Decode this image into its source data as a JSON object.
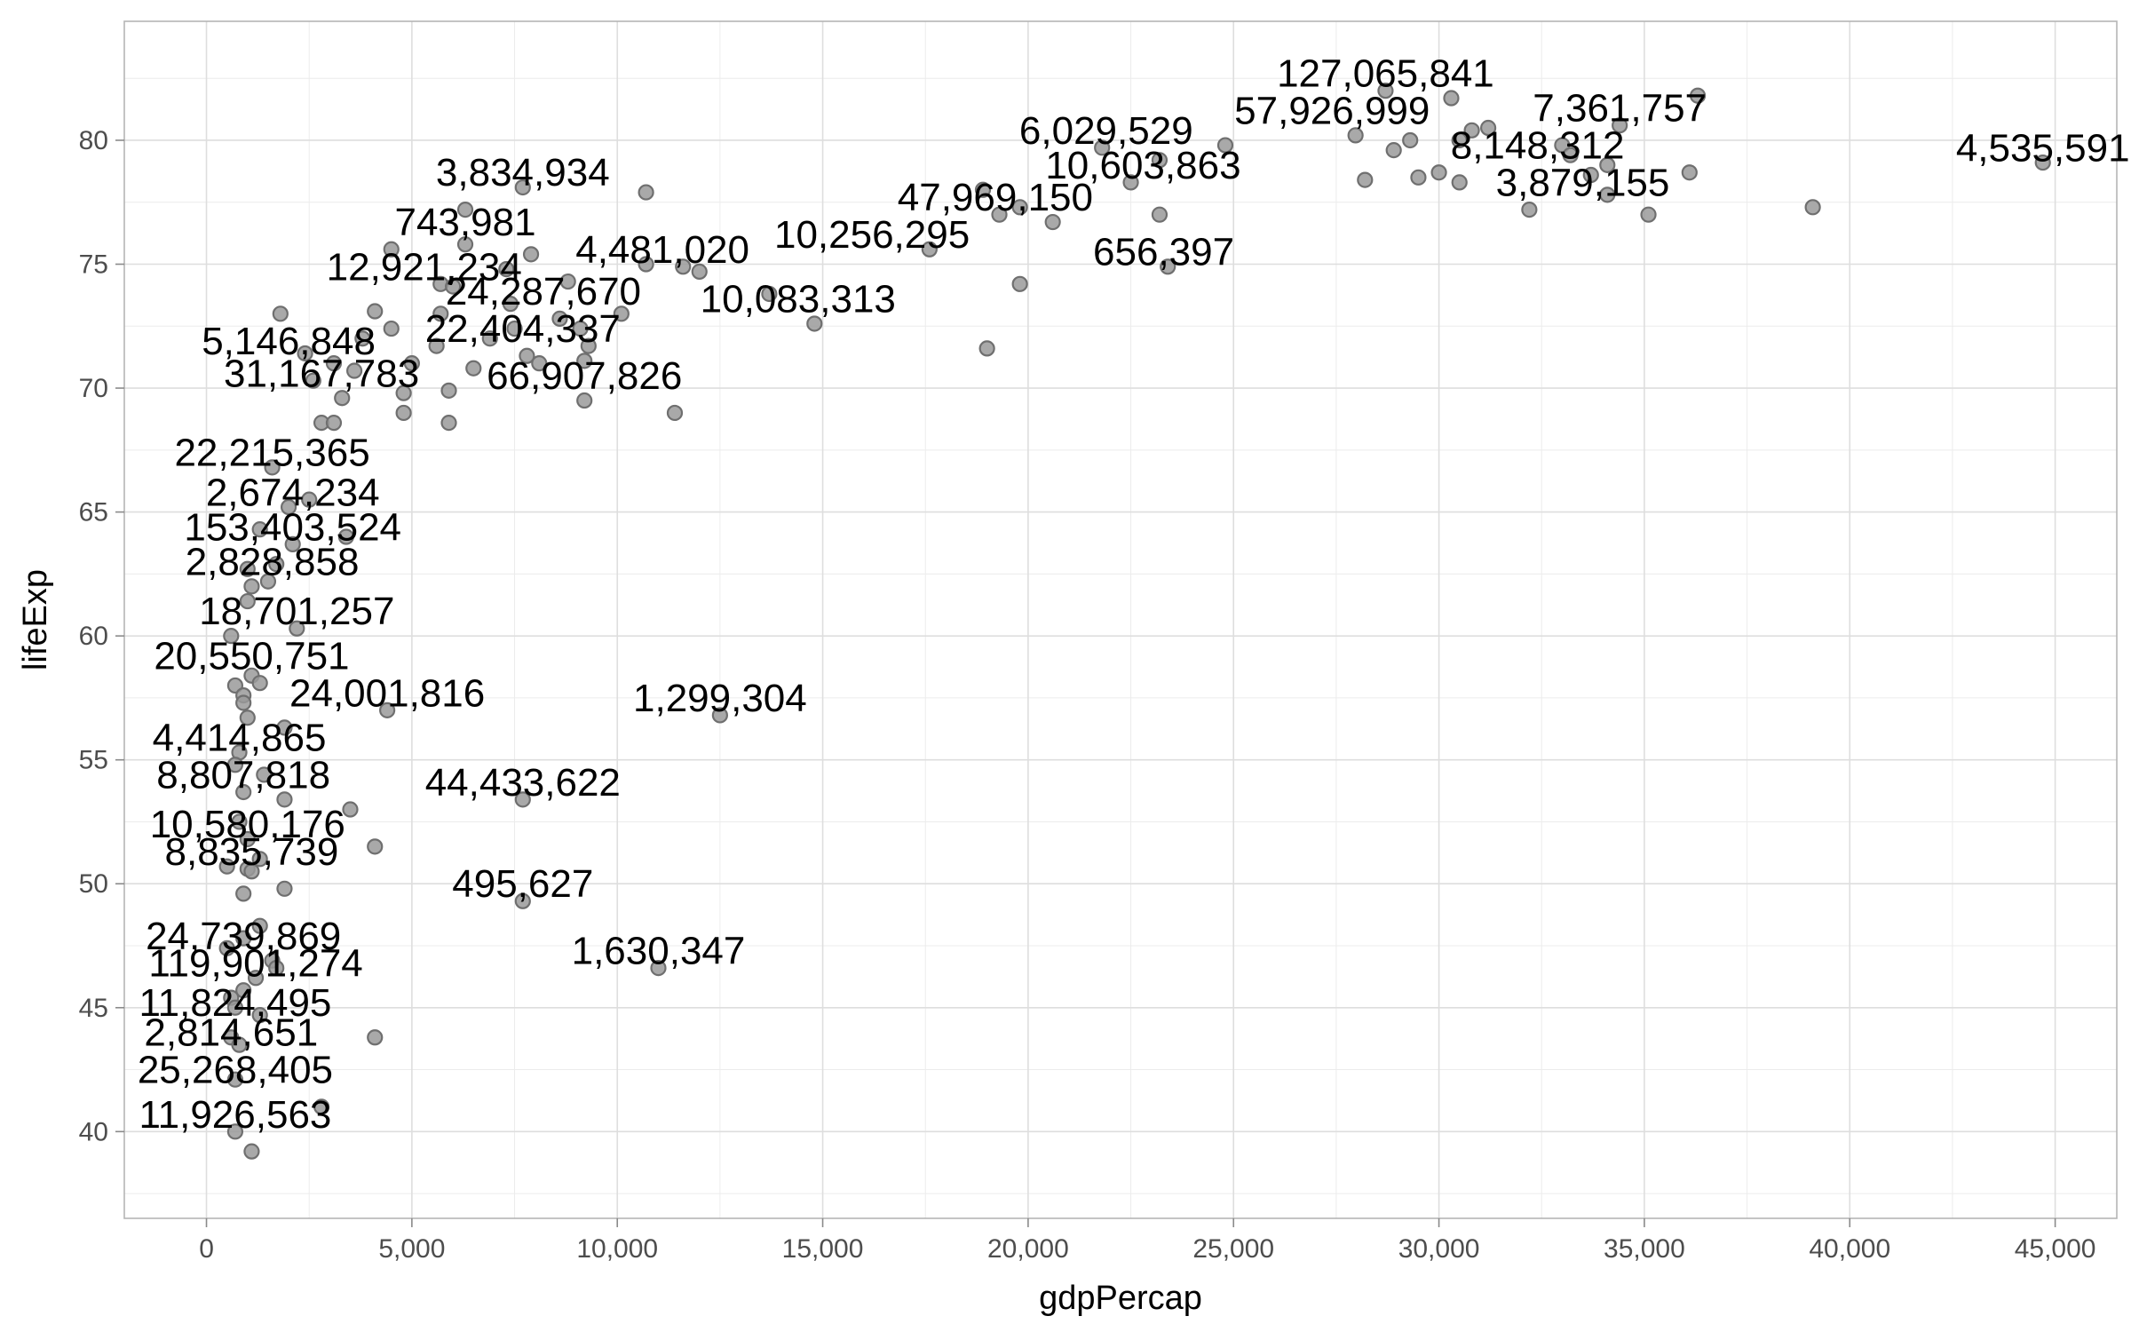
{
  "chart_data": {
    "type": "scatter",
    "title": "",
    "xlabel": "gdpPercap",
    "ylabel": "lifeExp",
    "xlim": [
      -2000,
      46500
    ],
    "ylim": [
      36.5,
      84.8
    ],
    "xticks": [
      0,
      5000,
      10000,
      15000,
      20000,
      25000,
      30000,
      35000,
      40000,
      45000
    ],
    "xtick_labels": [
      "0",
      "5,000",
      "10,000",
      "15,000",
      "20,000",
      "25,000",
      "30,000",
      "35,000",
      "40,000",
      "45,000"
    ],
    "yticks": [
      40,
      45,
      50,
      55,
      60,
      65,
      70,
      75,
      80
    ],
    "ytick_labels": [
      "40",
      "45",
      "50",
      "55",
      "60",
      "65",
      "70",
      "75",
      "80"
    ],
    "grid": true,
    "legend": "none",
    "point_color": "#9a9a9a",
    "points": [
      {
        "x": 28700,
        "y": 82.0
      },
      {
        "x": 30300,
        "y": 81.7
      },
      {
        "x": 36300,
        "y": 81.8
      },
      {
        "x": 34400,
        "y": 80.6
      },
      {
        "x": 27970,
        "y": 80.2
      },
      {
        "x": 30500,
        "y": 80.0
      },
      {
        "x": 29300,
        "y": 80.0
      },
      {
        "x": 30800,
        "y": 80.4
      },
      {
        "x": 31200,
        "y": 80.5
      },
      {
        "x": 33000,
        "y": 79.8
      },
      {
        "x": 24800,
        "y": 79.8
      },
      {
        "x": 23200,
        "y": 79.2
      },
      {
        "x": 21800,
        "y": 79.7
      },
      {
        "x": 28900,
        "y": 79.6
      },
      {
        "x": 33200,
        "y": 79.4
      },
      {
        "x": 34100,
        "y": 79.0
      },
      {
        "x": 33700,
        "y": 78.6
      },
      {
        "x": 30000,
        "y": 78.7
      },
      {
        "x": 29500,
        "y": 78.5
      },
      {
        "x": 30500,
        "y": 78.3
      },
      {
        "x": 28200,
        "y": 78.4
      },
      {
        "x": 36100,
        "y": 78.7
      },
      {
        "x": 44700,
        "y": 79.1
      },
      {
        "x": 22500,
        "y": 78.3
      },
      {
        "x": 10700,
        "y": 77.9
      },
      {
        "x": 7700,
        "y": 78.1
      },
      {
        "x": 18900,
        "y": 78.0
      },
      {
        "x": 19800,
        "y": 77.3
      },
      {
        "x": 20600,
        "y": 76.7
      },
      {
        "x": 23200,
        "y": 77.0
      },
      {
        "x": 32200,
        "y": 77.2
      },
      {
        "x": 34100,
        "y": 77.8
      },
      {
        "x": 35100,
        "y": 77.0
      },
      {
        "x": 39100,
        "y": 77.3
      },
      {
        "x": 6300,
        "y": 77.2
      },
      {
        "x": 19300,
        "y": 77.0
      },
      {
        "x": 17600,
        "y": 75.6
      },
      {
        "x": 23400,
        "y": 74.9
      },
      {
        "x": 19800,
        "y": 74.2
      },
      {
        "x": 10700,
        "y": 75.0
      },
      {
        "x": 11600,
        "y": 74.9
      },
      {
        "x": 12000,
        "y": 74.7
      },
      {
        "x": 6300,
        "y": 75.8
      },
      {
        "x": 4500,
        "y": 75.6
      },
      {
        "x": 7300,
        "y": 74.8
      },
      {
        "x": 7900,
        "y": 75.4
      },
      {
        "x": 8800,
        "y": 74.3
      },
      {
        "x": 5700,
        "y": 74.2
      },
      {
        "x": 6000,
        "y": 74.1
      },
      {
        "x": 7400,
        "y": 73.4
      },
      {
        "x": 4100,
        "y": 73.1
      },
      {
        "x": 5700,
        "y": 73.0
      },
      {
        "x": 8600,
        "y": 72.8
      },
      {
        "x": 10100,
        "y": 73.0
      },
      {
        "x": 9100,
        "y": 72.4
      },
      {
        "x": 13700,
        "y": 73.8
      },
      {
        "x": 14800,
        "y": 72.6
      },
      {
        "x": 1800,
        "y": 73.0
      },
      {
        "x": 4500,
        "y": 72.4
      },
      {
        "x": 3800,
        "y": 72.0
      },
      {
        "x": 5600,
        "y": 71.7
      },
      {
        "x": 6900,
        "y": 72.0
      },
      {
        "x": 7500,
        "y": 72.4
      },
      {
        "x": 9300,
        "y": 71.7
      },
      {
        "x": 19000,
        "y": 71.6
      },
      {
        "x": 2400,
        "y": 71.4
      },
      {
        "x": 3100,
        "y": 71.0
      },
      {
        "x": 3600,
        "y": 70.7
      },
      {
        "x": 5000,
        "y": 71.0
      },
      {
        "x": 6500,
        "y": 70.8
      },
      {
        "x": 7800,
        "y": 71.3
      },
      {
        "x": 8100,
        "y": 71.0
      },
      {
        "x": 9200,
        "y": 71.1
      },
      {
        "x": 2600,
        "y": 70.3
      },
      {
        "x": 4800,
        "y": 69.8
      },
      {
        "x": 5900,
        "y": 69.9
      },
      {
        "x": 3300,
        "y": 69.6
      },
      {
        "x": 9200,
        "y": 69.5
      },
      {
        "x": 11400,
        "y": 69.0
      },
      {
        "x": 4800,
        "y": 69.0
      },
      {
        "x": 2800,
        "y": 68.6
      },
      {
        "x": 3100,
        "y": 68.6
      },
      {
        "x": 5900,
        "y": 68.6
      },
      {
        "x": 1600,
        "y": 66.8
      },
      {
        "x": 2500,
        "y": 65.5
      },
      {
        "x": 2000,
        "y": 65.2
      },
      {
        "x": 1300,
        "y": 64.3
      },
      {
        "x": 3400,
        "y": 64.0
      },
      {
        "x": 2100,
        "y": 63.7
      },
      {
        "x": 1700,
        "y": 62.9
      },
      {
        "x": 1000,
        "y": 62.7
      },
      {
        "x": 1500,
        "y": 62.2
      },
      {
        "x": 1100,
        "y": 62.0
      },
      {
        "x": 1000,
        "y": 61.4
      },
      {
        "x": 2200,
        "y": 60.3
      },
      {
        "x": 600,
        "y": 60.0
      },
      {
        "x": 700,
        "y": 58.0
      },
      {
        "x": 1100,
        "y": 58.4
      },
      {
        "x": 1300,
        "y": 58.1
      },
      {
        "x": 900,
        "y": 57.6
      },
      {
        "x": 900,
        "y": 57.3
      },
      {
        "x": 4400,
        "y": 57.0
      },
      {
        "x": 12500,
        "y": 56.8
      },
      {
        "x": 1000,
        "y": 56.7
      },
      {
        "x": 1900,
        "y": 56.3
      },
      {
        "x": 800,
        "y": 55.3
      },
      {
        "x": 700,
        "y": 54.8
      },
      {
        "x": 1400,
        "y": 54.4
      },
      {
        "x": 900,
        "y": 53.7
      },
      {
        "x": 1900,
        "y": 53.4
      },
      {
        "x": 7700,
        "y": 53.4
      },
      {
        "x": 3500,
        "y": 53.0
      },
      {
        "x": 800,
        "y": 52.5
      },
      {
        "x": 1000,
        "y": 51.8
      },
      {
        "x": 4100,
        "y": 51.5
      },
      {
        "x": 1300,
        "y": 51.0
      },
      {
        "x": 500,
        "y": 50.7
      },
      {
        "x": 1000,
        "y": 50.6
      },
      {
        "x": 1100,
        "y": 50.5
      },
      {
        "x": 1900,
        "y": 49.8
      },
      {
        "x": 900,
        "y": 49.6
      },
      {
        "x": 7700,
        "y": 49.3
      },
      {
        "x": 1300,
        "y": 48.3
      },
      {
        "x": 900,
        "y": 47.8
      },
      {
        "x": 500,
        "y": 47.4
      },
      {
        "x": 1600,
        "y": 46.9
      },
      {
        "x": 1700,
        "y": 46.6
      },
      {
        "x": 11000,
        "y": 46.6
      },
      {
        "x": 1200,
        "y": 46.2
      },
      {
        "x": 900,
        "y": 45.7
      },
      {
        "x": 600,
        "y": 45.4
      },
      {
        "x": 700,
        "y": 45.0
      },
      {
        "x": 1300,
        "y": 44.7
      },
      {
        "x": 4100,
        "y": 43.8
      },
      {
        "x": 600,
        "y": 43.8
      },
      {
        "x": 800,
        "y": 43.5
      },
      {
        "x": 700,
        "y": 42.1
      },
      {
        "x": 2800,
        "y": 41.0
      },
      {
        "x": 700,
        "y": 40.0
      },
      {
        "x": 1100,
        "y": 39.2
      }
    ],
    "annotations": [
      {
        "text": "127,065,841",
        "x": 28700,
        "y": 82.7
      },
      {
        "text": "57,926,999",
        "x": 27400,
        "y": 81.2
      },
      {
        "text": "7,361,757",
        "x": 34400,
        "y": 81.3
      },
      {
        "text": "4,535,591",
        "x": 44700,
        "y": 79.7
      },
      {
        "text": "6,029,529",
        "x": 21900,
        "y": 80.4
      },
      {
        "text": "10,603,863",
        "x": 22800,
        "y": 79.0
      },
      {
        "text": "8,148,312",
        "x": 32400,
        "y": 79.8
      },
      {
        "text": "3,879,155",
        "x": 33500,
        "y": 78.3
      },
      {
        "text": "3,834,934",
        "x": 7700,
        "y": 78.7
      },
      {
        "text": "47,969,150",
        "x": 19200,
        "y": 77.7
      },
      {
        "text": "10,256,295",
        "x": 16200,
        "y": 76.2
      },
      {
        "text": "656,397",
        "x": 23300,
        "y": 75.5
      },
      {
        "text": "743,981",
        "x": 6300,
        "y": 76.7
      },
      {
        "text": "4,481,020",
        "x": 11100,
        "y": 75.6
      },
      {
        "text": "12,921,234",
        "x": 5300,
        "y": 74.9
      },
      {
        "text": "10,083,313",
        "x": 14400,
        "y": 73.6
      },
      {
        "text": "24,287,670",
        "x": 8200,
        "y": 73.9
      },
      {
        "text": "22,404,337",
        "x": 7700,
        "y": 72.4
      },
      {
        "text": "5,146,848",
        "x": 2000,
        "y": 71.9
      },
      {
        "text": "31,167,783",
        "x": 2800,
        "y": 70.6
      },
      {
        "text": "66,907,826",
        "x": 9200,
        "y": 70.5
      },
      {
        "text": "22,215,365",
        "x": 1600,
        "y": 67.4
      },
      {
        "text": "2,674,234",
        "x": 2100,
        "y": 65.8
      },
      {
        "text": "153,403,524",
        "x": 2100,
        "y": 64.4
      },
      {
        "text": "2,828,858",
        "x": 1600,
        "y": 63.0
      },
      {
        "text": "18,701,257",
        "x": 2200,
        "y": 61.0
      },
      {
        "text": "20,550,751",
        "x": 1100,
        "y": 59.2
      },
      {
        "text": "24,001,816",
        "x": 4400,
        "y": 57.7
      },
      {
        "text": "1,299,304",
        "x": 12500,
        "y": 57.5
      },
      {
        "text": "4,414,865",
        "x": 800,
        "y": 55.9
      },
      {
        "text": "8,807,818",
        "x": 900,
        "y": 54.4
      },
      {
        "text": "44,433,622",
        "x": 7700,
        "y": 54.1
      },
      {
        "text": "10,580,176",
        "x": 1000,
        "y": 52.4
      },
      {
        "text": "8,835,739",
        "x": 1100,
        "y": 51.3
      },
      {
        "text": "495,627",
        "x": 7700,
        "y": 50.0
      },
      {
        "text": "24,739,869",
        "x": 900,
        "y": 47.9
      },
      {
        "text": "119,901,274",
        "x": 1200,
        "y": 46.8
      },
      {
        "text": "1,630,347",
        "x": 11000,
        "y": 47.3
      },
      {
        "text": "11,824,495",
        "x": 700,
        "y": 45.2
      },
      {
        "text": "2,814,651",
        "x": 600,
        "y": 44.0
      },
      {
        "text": "25,268,405",
        "x": 700,
        "y": 42.5
      },
      {
        "text": "11,926,563",
        "x": 700,
        "y": 40.7
      }
    ]
  }
}
